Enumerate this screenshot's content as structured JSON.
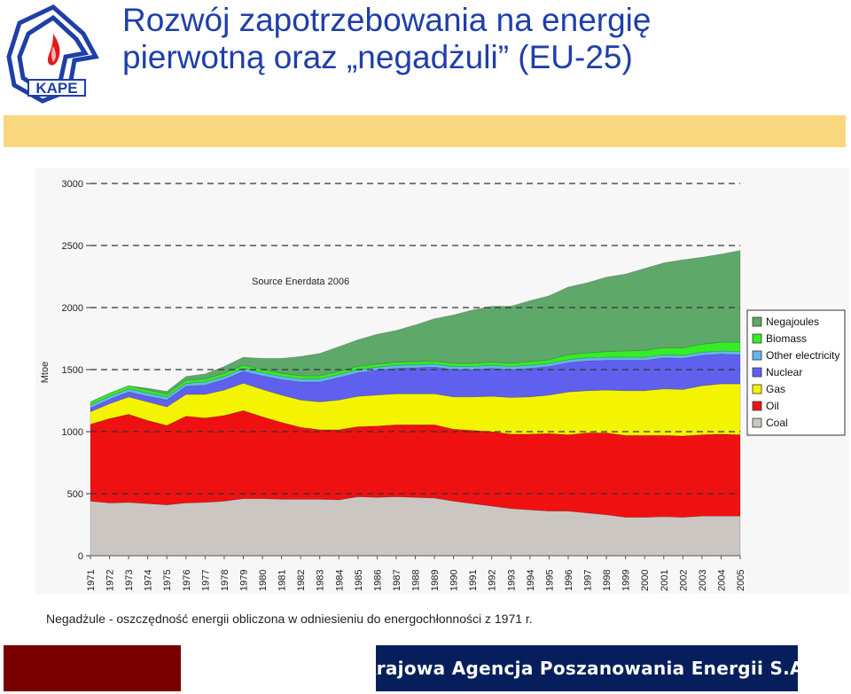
{
  "header": {
    "logo_text": "KAPE",
    "title_line1": "Rozwój zapotrzebowania na energię",
    "title_line2": "pierwotną oraz „negadżuli” (EU-25)"
  },
  "chart_data": {
    "type": "area",
    "stacked": true,
    "source_note": "Source Enerdata 2006",
    "ylabel": "Mtoe",
    "xlabel": "",
    "ylim": [
      0,
      3000
    ],
    "yticks": [
      0,
      500,
      1000,
      1500,
      2000,
      2500,
      3000
    ],
    "x": [
      "1971",
      "1972",
      "1973",
      "1974",
      "1975",
      "1976",
      "1977",
      "1978",
      "1979",
      "1980",
      "1981",
      "1982",
      "1983",
      "1984",
      "1985",
      "1986",
      "1987",
      "1988",
      "1989",
      "1990",
      "1991",
      "1992",
      "1993",
      "1994",
      "1995",
      "1996",
      "1997",
      "1998",
      "1999",
      "2000",
      "2001",
      "2002",
      "2003",
      "2004",
      "2005"
    ],
    "reference_line": {
      "value": 1000,
      "style": "dashed"
    },
    "reference_lines_dashed": [
      1500,
      2000,
      2500,
      3000
    ],
    "legend_position": "right",
    "series": [
      {
        "name": "Coal",
        "color": "#cbc6c2",
        "values": [
          440,
          425,
          430,
          420,
          410,
          425,
          430,
          440,
          460,
          460,
          455,
          455,
          455,
          450,
          475,
          470,
          475,
          470,
          465,
          440,
          420,
          400,
          380,
          370,
          360,
          360,
          345,
          330,
          310,
          310,
          315,
          310,
          320,
          320,
          320
        ]
      },
      {
        "name": "Oil",
        "color": "#ef1111",
        "values": [
          620,
          680,
          710,
          670,
          640,
          700,
          680,
          690,
          710,
          660,
          620,
          580,
          560,
          565,
          565,
          575,
          580,
          585,
          590,
          580,
          590,
          600,
          600,
          610,
          625,
          615,
          645,
          660,
          660,
          660,
          655,
          655,
          655,
          660,
          655
        ]
      },
      {
        "name": "Gas",
        "color": "#f4f400",
        "values": [
          100,
          120,
          140,
          150,
          150,
          175,
          190,
          205,
          220,
          220,
          220,
          220,
          225,
          240,
          245,
          250,
          250,
          250,
          250,
          260,
          270,
          285,
          295,
          300,
          310,
          345,
          340,
          345,
          360,
          360,
          375,
          375,
          395,
          405,
          410
        ]
      },
      {
        "name": "Nuclear",
        "color": "#6060ee",
        "values": [
          30,
          35,
          40,
          45,
          55,
          65,
          75,
          85,
          95,
          110,
          125,
          145,
          160,
          180,
          190,
          200,
          205,
          210,
          215,
          220,
          220,
          225,
          225,
          230,
          230,
          235,
          240,
          240,
          245,
          245,
          250,
          250,
          245,
          240,
          235
        ]
      },
      {
        "name": "Other electricity",
        "color": "#66b4ee",
        "values": [
          25,
          25,
          25,
          25,
          25,
          25,
          25,
          25,
          25,
          25,
          25,
          25,
          25,
          25,
          25,
          25,
          25,
          25,
          25,
          25,
          25,
          25,
          25,
          25,
          25,
          25,
          25,
          25,
          25,
          25,
          25,
          25,
          25,
          25,
          25
        ]
      },
      {
        "name": "Biomass",
        "color": "#33ee22",
        "values": [
          25,
          25,
          25,
          25,
          25,
          25,
          25,
          25,
          25,
          25,
          25,
          25,
          25,
          25,
          25,
          25,
          25,
          25,
          25,
          25,
          25,
          25,
          25,
          30,
          30,
          40,
          40,
          45,
          50,
          55,
          55,
          60,
          65,
          70,
          75
        ]
      },
      {
        "name": "Negajoules",
        "color": "#5ea86a",
        "values": [
          0,
          0,
          0,
          15,
          20,
          30,
          40,
          55,
          65,
          90,
          120,
          155,
          180,
          200,
          215,
          240,
          255,
          295,
          340,
          390,
          430,
          450,
          460,
          490,
          515,
          545,
          565,
          600,
          620,
          660,
          685,
          710,
          700,
          710,
          740
        ]
      }
    ]
  },
  "caption": "Negadżule - oszczędność energii obliczona w odniesieniu do energochłonności z 1971 r.",
  "footer": {
    "agency": "Krajowa Agencja Poszanowania Energii S.A."
  }
}
